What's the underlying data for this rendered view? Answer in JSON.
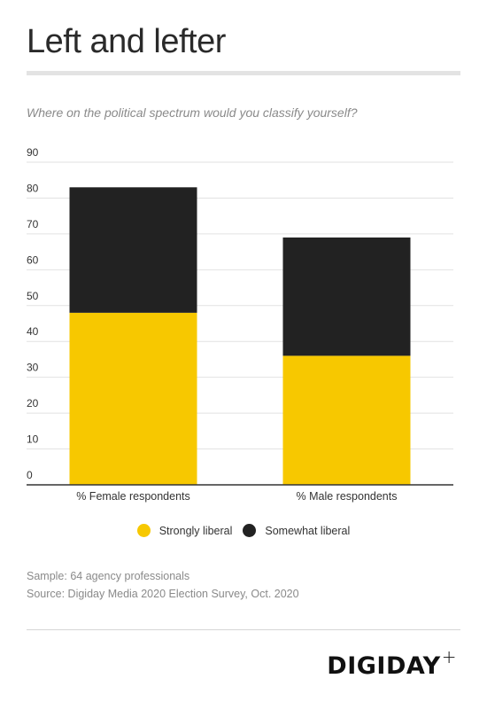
{
  "header": {
    "title": "Left and lefter",
    "subtitle": "Where on the political spectrum would you classify yourself?"
  },
  "legend": [
    {
      "label": "Strongly liberal",
      "color": "#f7c800"
    },
    {
      "label": "Somewhat liberal",
      "color": "#222222"
    }
  ],
  "footer": {
    "sample": "Sample: 64 agency professionals",
    "source": "Source: Digiday Media 2020 Election Survey, Oct. 2020",
    "logo_text": "DIGIDAY",
    "logo_mark": "+"
  },
  "chart_data": {
    "type": "bar",
    "stacked": true,
    "categories": [
      "% Female respondents",
      "% Male respondents"
    ],
    "series": [
      {
        "name": "Strongly liberal",
        "values": [
          48,
          36
        ],
        "color": "#f7c800"
      },
      {
        "name": "Somewhat liberal",
        "values": [
          35,
          33
        ],
        "color": "#222222"
      }
    ],
    "ylim": [
      0,
      90
    ],
    "yticks": [
      0,
      10,
      20,
      30,
      40,
      50,
      60,
      70,
      80,
      90
    ],
    "grid": true,
    "legend_position": "bottom"
  }
}
